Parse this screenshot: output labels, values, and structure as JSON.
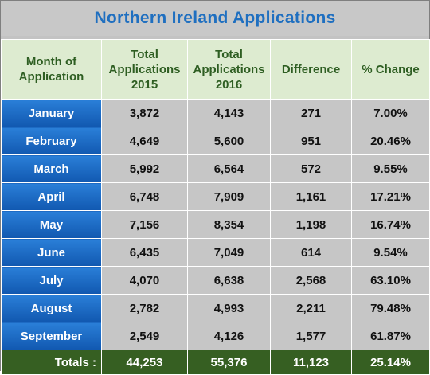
{
  "title": "Northern Ireland Applications",
  "headers": {
    "month": [
      "Month of",
      "Application"
    ],
    "total2015": [
      "Total",
      "Applications",
      "2015"
    ],
    "total2016": [
      "Total",
      "Applications",
      "2016"
    ],
    "difference": "Difference",
    "change": "% Change"
  },
  "rows": [
    {
      "month": "January",
      "y2015": "3,872",
      "y2016": "4,143",
      "diff": "271",
      "pct": "7.00%"
    },
    {
      "month": "February",
      "y2015": "4,649",
      "y2016": "5,600",
      "diff": "951",
      "pct": "20.46%"
    },
    {
      "month": "March",
      "y2015": "5,992",
      "y2016": "6,564",
      "diff": "572",
      "pct": "9.55%"
    },
    {
      "month": "April",
      "y2015": "6,748",
      "y2016": "7,909",
      "diff": "1,161",
      "pct": "17.21%"
    },
    {
      "month": "May",
      "y2015": "7,156",
      "y2016": "8,354",
      "diff": "1,198",
      "pct": "16.74%"
    },
    {
      "month": "June",
      "y2015": "6,435",
      "y2016": "7,049",
      "diff": "614",
      "pct": "9.54%"
    },
    {
      "month": "July",
      "y2015": "4,070",
      "y2016": "6,638",
      "diff": "2,568",
      "pct": "63.10%"
    },
    {
      "month": "August",
      "y2015": "2,782",
      "y2016": "4,993",
      "diff": "2,211",
      "pct": "79.48%"
    },
    {
      "month": "September",
      "y2015": "2,549",
      "y2016": "4,126",
      "diff": "1,577",
      "pct": "61.87%"
    }
  ],
  "totals": {
    "label": "Totals :",
    "y2015": "44,253",
    "y2016": "55,376",
    "diff": "11,123",
    "pct": "25.14%"
  },
  "colors": {
    "title": "#1f6fc0",
    "header_bg": "#ddebd0",
    "header_text": "#2e5e22",
    "month_bg": "#1a6ac8",
    "totals_bg": "#365f22"
  }
}
